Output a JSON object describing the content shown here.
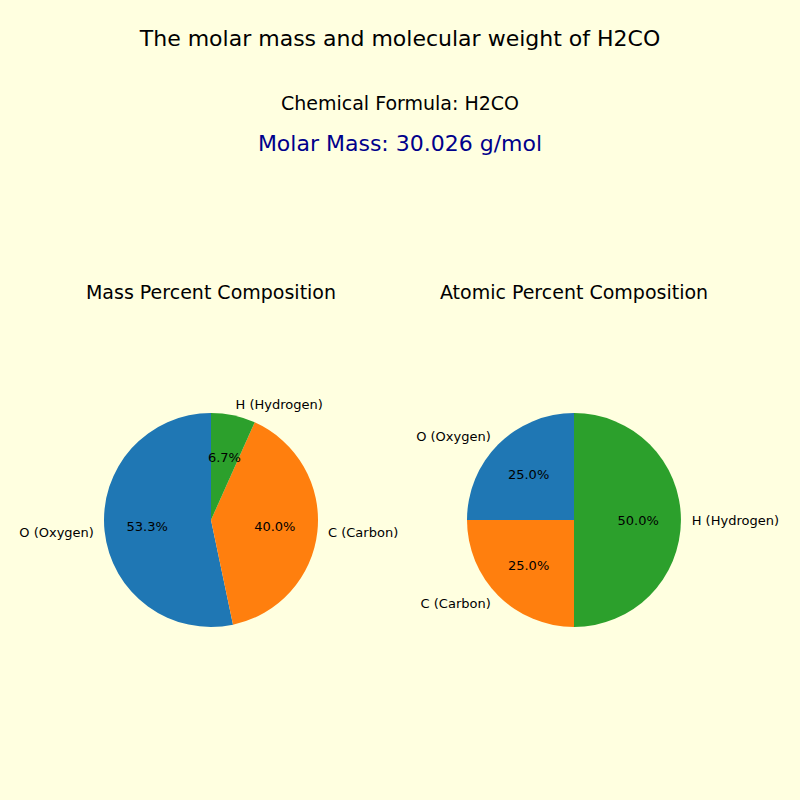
{
  "header": {
    "title": "The molar mass and molecular weight of H2CO",
    "formula": "Chemical Formula: H2CO",
    "molar_mass": "Molar Mass: 30.026 g/mol"
  },
  "chart_data": [
    {
      "type": "pie",
      "title": "Mass Percent Composition",
      "categories": [
        "O (Oxygen)",
        "C (Carbon)",
        "H (Hydrogen)"
      ],
      "values": [
        53.3,
        40.0,
        6.7
      ],
      "value_labels": [
        "53.3%",
        "40.0%",
        "6.7%"
      ],
      "colors": [
        "#1f77b4",
        "#ff7f0e",
        "#2ca02c"
      ],
      "data_labels": true
    },
    {
      "type": "pie",
      "title": "Atomic Percent Composition",
      "categories": [
        "O (Oxygen)",
        "C (Carbon)",
        "H (Hydrogen)"
      ],
      "values": [
        25.0,
        25.0,
        50.0
      ],
      "value_labels": [
        "25.0%",
        "25.0%",
        "50.0%"
      ],
      "colors": [
        "#1f77b4",
        "#ff7f0e",
        "#2ca02c"
      ],
      "data_labels": true
    }
  ]
}
